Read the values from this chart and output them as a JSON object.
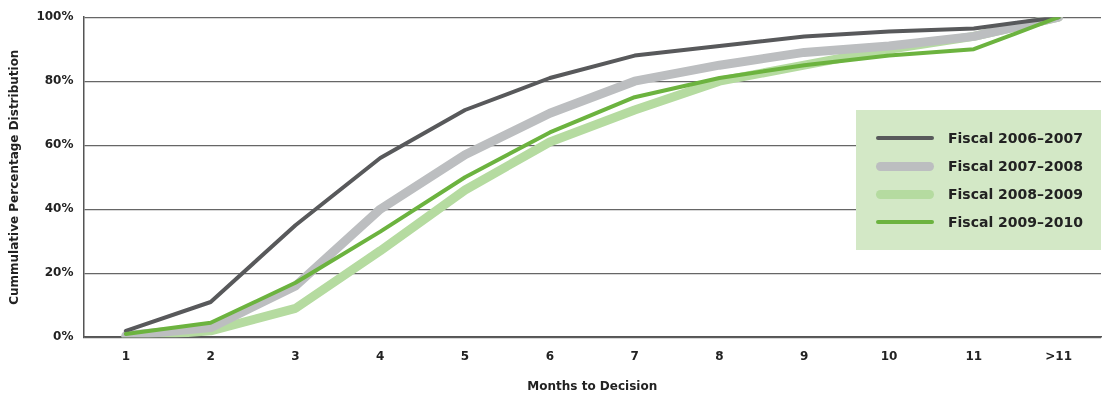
{
  "chart_data": {
    "type": "line",
    "xlabel": "Months to Decision",
    "ylabel": "Cummulative Percentage Distribution",
    "categories": [
      "1",
      "2",
      "3",
      "4",
      "5",
      "6",
      "7",
      "8",
      "9",
      "10",
      "11",
      ">11"
    ],
    "ylim": [
      0,
      100
    ],
    "yticks": [
      {
        "value": 0,
        "label": "0%"
      },
      {
        "value": 20,
        "label": "20%"
      },
      {
        "value": 40,
        "label": "40%"
      },
      {
        "value": 60,
        "label": "60%"
      },
      {
        "value": 80,
        "label": "80%"
      },
      {
        "value": 100,
        "label": "100%"
      }
    ],
    "grid": "y",
    "legend": "right",
    "marker": "none",
    "line_style": "solid",
    "series": [
      {
        "name": "Fiscal 2006–2007",
        "color": "#58595b",
        "values": [
          2,
          11,
          35,
          56,
          71,
          81,
          88,
          91,
          94,
          95.5,
          96.5,
          100
        ]
      },
      {
        "name": "Fiscal 2007–2008",
        "color": "#bcbec0",
        "values": [
          0.5,
          3,
          16,
          40,
          57,
          70,
          80,
          85,
          89,
          91,
          94,
          100
        ]
      },
      {
        "name": "Fiscal 2008–2009",
        "color": "#b5dba0",
        "values": [
          0,
          2,
          9,
          27,
          46,
          61,
          71,
          80,
          85,
          90,
          94,
          100
        ]
      },
      {
        "name": "Fiscal 2009–2010",
        "color": "#6cb33f",
        "values": [
          1,
          4.5,
          17,
          33,
          50,
          64,
          75,
          81,
          85,
          88,
          90,
          100
        ]
      }
    ]
  }
}
